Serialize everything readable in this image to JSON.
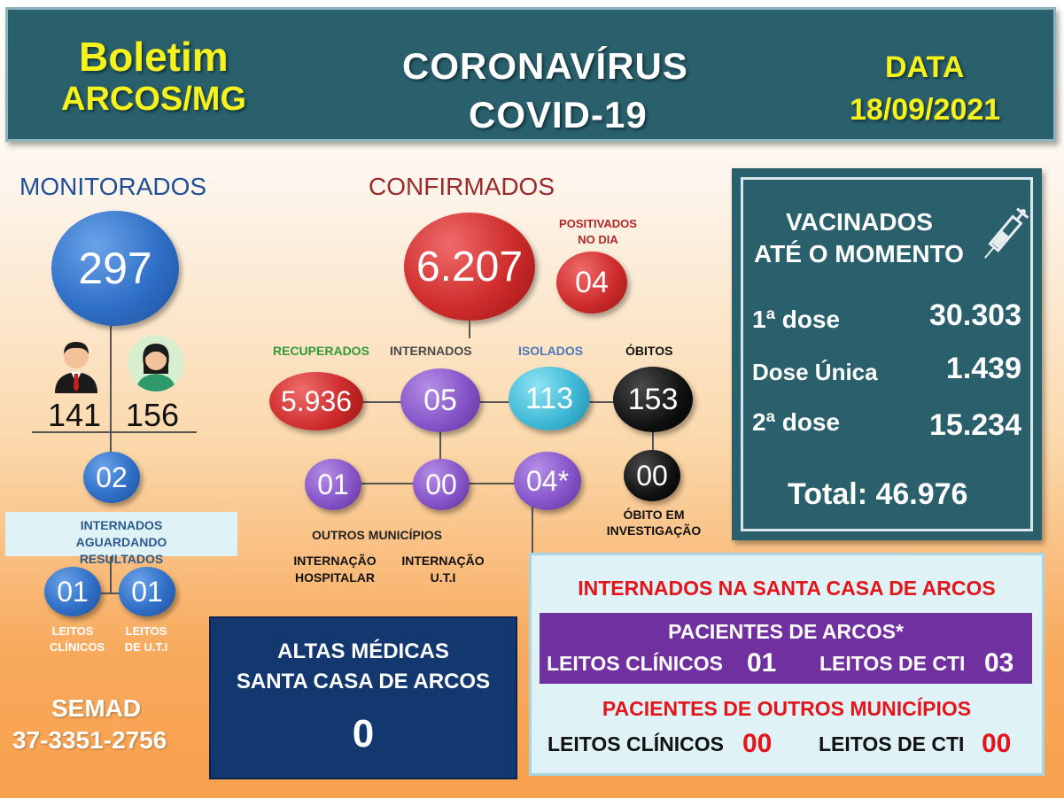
{
  "header": {
    "boletim": "Boletim",
    "arcos": "ARCOS/MG",
    "title1": "CORONAVÍRUS",
    "title2": "COVID-19",
    "data_label": "DATA",
    "date": "18/09/2021"
  },
  "monitorados": {
    "title": "MONITORADOS",
    "total": "297",
    "male": "141",
    "female": "156",
    "awaiting": "02",
    "awaiting_label": "INTERNADOS AGUARDANDO RESULTADOS",
    "leitos_clinicos": "01",
    "leitos_uti": "01",
    "leitos_clinicos_label1": "LEITOS",
    "leitos_clinicos_label2": "CLÍNICOS",
    "leitos_uti_label1": "LEITOS",
    "leitos_uti_label2": "DE  U.T.I"
  },
  "semad": {
    "label": "SEMAD",
    "phone": "37-3351-2756"
  },
  "confirmados": {
    "title": "CONFIRMADOS",
    "total": "6.207",
    "positivados_label1": "POSITIVADOS",
    "positivados_label2": "NO DIA",
    "positivados": "04",
    "recuperados_label": "RECUPERADOS",
    "recuperados": "5.936",
    "internados_label": "INTERNADOS",
    "internados": "05",
    "isolados_label": "ISOLADOS",
    "isolados": "113",
    "obitos_label": "ÓBITOS",
    "obitos": "153",
    "outros": "01",
    "hospitalar": "00",
    "uti": "04*",
    "obito_invest": "00",
    "obito_invest_label1": "ÓBITO EM",
    "obito_invest_label2": "INVESTIGAÇÃO",
    "outros_label": "OUTROS MUNICÍPIOS",
    "hospitalar_label1": "INTERNAÇÃO",
    "hospitalar_label2": "HOSPITALAR",
    "uti_label1": "INTERNAÇÃO",
    "uti_label2": "U.T.I"
  },
  "vacinados": {
    "title1": "VACINADOS",
    "title2": "ATÉ O MOMENTO",
    "dose1_label": "1ª dose",
    "dose1": "30.303",
    "unica_label": "Dose Única",
    "unica": "1.439",
    "dose2_label": "2ª dose",
    "dose2": "15.234",
    "total": "Total: 46.976"
  },
  "altas": {
    "line1": "ALTAS MÉDICAS",
    "line2": "SANTA CASA DE ARCOS",
    "value": "0"
  },
  "santa_casa": {
    "title": "INTERNADOS NA SANTA CASA DE ARCOS",
    "arcos_title": "PACIENTES DE ARCOS*",
    "arcos_clinicos_label": "LEITOS CLÍNICOS",
    "arcos_clinicos": "01",
    "arcos_cti_label": "LEITOS DE CTI",
    "arcos_cti": "03",
    "outros_title": "PACIENTES DE OUTROS MUNICÍPIOS",
    "outros_clinicos_label": "LEITOS CLÍNICOS",
    "outros_clinicos": "00",
    "outros_cti_label": "LEITOS DE CTI",
    "outros_cti": "00"
  },
  "colors": {
    "header_bg": "#2a5f6c",
    "yellow": "#f5f21c",
    "red_title": "#e4141b",
    "navy": "#13376f",
    "purple": "#7030a0"
  },
  "icons": [
    "man-avatar-icon",
    "woman-avatar-icon",
    "syringe-icon"
  ]
}
